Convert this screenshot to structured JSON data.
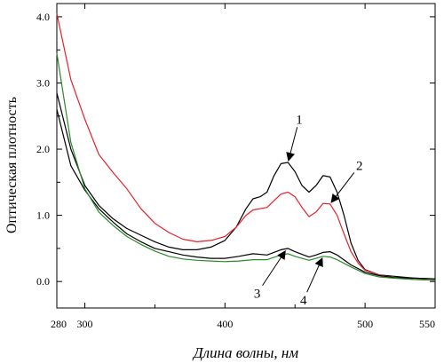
{
  "chart_data": {
    "type": "line",
    "title": "",
    "xlabel": "Длина волны, нм",
    "ylabel": "Оптическая плотность",
    "xlim": [
      280,
      550
    ],
    "ylim": [
      -0.4,
      4.2
    ],
    "x_ticks": [
      {
        "value": 280,
        "label": "280"
      },
      {
        "value": 300,
        "label": "300"
      },
      {
        "value": 400,
        "label": "400"
      },
      {
        "value": 500,
        "label": "500"
      },
      {
        "value": 550,
        "label": "550"
      }
    ],
    "y_ticks": [
      {
        "value": 0.0,
        "label": "0.0"
      },
      {
        "value": 1.0,
        "label": "1.0"
      },
      {
        "value": 2.0,
        "label": "2.0"
      },
      {
        "value": 3.0,
        "label": "3.0"
      },
      {
        "value": 4.0,
        "label": "4.0"
      }
    ],
    "grid": false,
    "legend": "none",
    "series": [
      {
        "color": "#000000",
        "points": [
          [
            280,
            2.85
          ],
          [
            290,
            2.0
          ],
          [
            300,
            1.45
          ],
          [
            310,
            1.15
          ],
          [
            320,
            0.95
          ],
          [
            330,
            0.8
          ],
          [
            340,
            0.7
          ],
          [
            350,
            0.6
          ],
          [
            360,
            0.52
          ],
          [
            370,
            0.48
          ],
          [
            380,
            0.48
          ],
          [
            390,
            0.52
          ],
          [
            400,
            0.62
          ],
          [
            408,
            0.82
          ],
          [
            415,
            1.1
          ],
          [
            420,
            1.25
          ],
          [
            425,
            1.28
          ],
          [
            430,
            1.35
          ],
          [
            435,
            1.6
          ],
          [
            440,
            1.78
          ],
          [
            445,
            1.8
          ],
          [
            450,
            1.66
          ],
          [
            455,
            1.45
          ],
          [
            460,
            1.35
          ],
          [
            465,
            1.45
          ],
          [
            470,
            1.6
          ],
          [
            475,
            1.58
          ],
          [
            480,
            1.35
          ],
          [
            485,
            1.0
          ],
          [
            490,
            0.58
          ],
          [
            495,
            0.32
          ],
          [
            500,
            0.18
          ],
          [
            510,
            0.1
          ],
          [
            520,
            0.08
          ],
          [
            535,
            0.05
          ],
          [
            550,
            0.04
          ]
        ]
      },
      {
        "color": "#e8202a",
        "points": [
          [
            280,
            4.05
          ],
          [
            290,
            3.05
          ],
          [
            300,
            2.45
          ],
          [
            310,
            1.92
          ],
          [
            320,
            1.65
          ],
          [
            330,
            1.4
          ],
          [
            340,
            1.1
          ],
          [
            350,
            0.88
          ],
          [
            360,
            0.74
          ],
          [
            370,
            0.64
          ],
          [
            380,
            0.6
          ],
          [
            390,
            0.62
          ],
          [
            400,
            0.68
          ],
          [
            408,
            0.82
          ],
          [
            415,
            1.0
          ],
          [
            420,
            1.08
          ],
          [
            430,
            1.12
          ],
          [
            440,
            1.32
          ],
          [
            445,
            1.35
          ],
          [
            450,
            1.28
          ],
          [
            455,
            1.12
          ],
          [
            460,
            0.98
          ],
          [
            465,
            1.05
          ],
          [
            470,
            1.18
          ],
          [
            475,
            1.17
          ],
          [
            480,
            1.0
          ],
          [
            485,
            0.72
          ],
          [
            490,
            0.45
          ],
          [
            495,
            0.28
          ],
          [
            500,
            0.17
          ],
          [
            510,
            0.1
          ],
          [
            520,
            0.06
          ],
          [
            535,
            0.03
          ],
          [
            550,
            0.02
          ]
        ]
      },
      {
        "color": "#000000",
        "points": [
          [
            280,
            2.6
          ],
          [
            290,
            1.75
          ],
          [
            300,
            1.38
          ],
          [
            310,
            1.1
          ],
          [
            320,
            0.9
          ],
          [
            330,
            0.72
          ],
          [
            340,
            0.6
          ],
          [
            350,
            0.5
          ],
          [
            360,
            0.45
          ],
          [
            370,
            0.4
          ],
          [
            380,
            0.37
          ],
          [
            390,
            0.35
          ],
          [
            400,
            0.35
          ],
          [
            410,
            0.38
          ],
          [
            420,
            0.42
          ],
          [
            430,
            0.4
          ],
          [
            440,
            0.48
          ],
          [
            445,
            0.5
          ],
          [
            450,
            0.45
          ],
          [
            460,
            0.37
          ],
          [
            465,
            0.4
          ],
          [
            470,
            0.44
          ],
          [
            475,
            0.45
          ],
          [
            480,
            0.4
          ],
          [
            490,
            0.25
          ],
          [
            500,
            0.14
          ],
          [
            510,
            0.09
          ],
          [
            520,
            0.06
          ],
          [
            535,
            0.05
          ],
          [
            550,
            0.04
          ]
        ]
      },
      {
        "color": "#2a8a2a",
        "points": [
          [
            280,
            3.45
          ],
          [
            290,
            2.1
          ],
          [
            300,
            1.4
          ],
          [
            310,
            1.05
          ],
          [
            320,
            0.85
          ],
          [
            330,
            0.68
          ],
          [
            340,
            0.56
          ],
          [
            350,
            0.46
          ],
          [
            360,
            0.38
          ],
          [
            370,
            0.34
          ],
          [
            380,
            0.32
          ],
          [
            390,
            0.31
          ],
          [
            400,
            0.3
          ],
          [
            410,
            0.31
          ],
          [
            420,
            0.33
          ],
          [
            430,
            0.33
          ],
          [
            440,
            0.4
          ],
          [
            445,
            0.42
          ],
          [
            450,
            0.38
          ],
          [
            460,
            0.32
          ],
          [
            465,
            0.35
          ],
          [
            470,
            0.38
          ],
          [
            475,
            0.37
          ],
          [
            480,
            0.33
          ],
          [
            490,
            0.22
          ],
          [
            500,
            0.12
          ],
          [
            510,
            0.07
          ],
          [
            520,
            0.05
          ],
          [
            535,
            0.03
          ],
          [
            550,
            0.02
          ]
        ]
      }
    ],
    "annotations": [
      {
        "text": "1",
        "series": 0,
        "target": [
          445,
          1.8
        ],
        "label_at": [
          453,
          2.45
        ]
      },
      {
        "text": "2",
        "series": 1,
        "target": [
          475,
          1.17
        ],
        "label_at": [
          496,
          1.75
        ]
      },
      {
        "text": "3",
        "series": 2,
        "target": [
          444,
          0.49
        ],
        "label_at": [
          423,
          -0.18
        ]
      },
      {
        "text": "4",
        "series": 3,
        "target": [
          470,
          0.38
        ],
        "label_at": [
          456,
          -0.28
        ]
      }
    ]
  }
}
